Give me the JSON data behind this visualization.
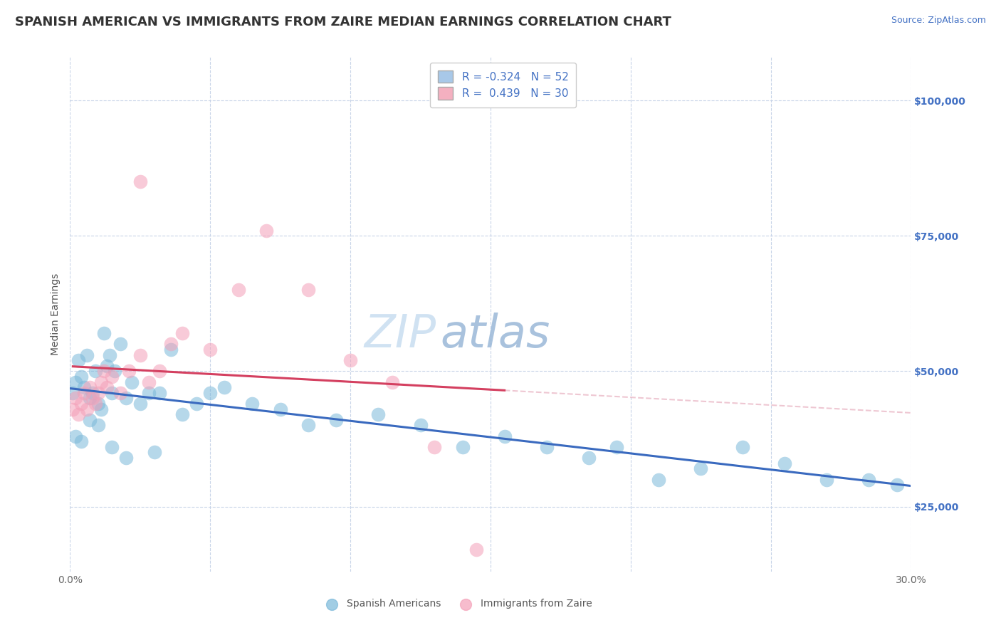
{
  "title": "SPANISH AMERICAN VS IMMIGRANTS FROM ZAIRE MEDIAN EARNINGS CORRELATION CHART",
  "source": "Source: ZipAtlas.com",
  "ylabel": "Median Earnings",
  "xlim": [
    0.0,
    0.3
  ],
  "ylim": [
    13000,
    108000
  ],
  "xticks": [
    0.0,
    0.05,
    0.1,
    0.15,
    0.2,
    0.25,
    0.3
  ],
  "xticklabels": [
    "0.0%",
    "",
    "",
    "",
    "",
    "",
    "30.0%"
  ],
  "ytick_positions": [
    25000,
    50000,
    75000,
    100000
  ],
  "ytick_labels": [
    "$25,000",
    "$50,000",
    "$75,000",
    "$100,000"
  ],
  "watermark_part1": "ZIP",
  "watermark_part2": "atlas",
  "series1_color": "#7ab8d9",
  "series2_color": "#f4a0b8",
  "series1_edge": "#5a98c0",
  "series2_edge": "#e07090",
  "trendline1_color": "#3a6abf",
  "trendline2_color": "#d44060",
  "trendline_dash_color": "#e8b0c0",
  "background_color": "#ffffff",
  "grid_color": "#c8d4e8",
  "legend_patch1_color": "#a8c8e8",
  "legend_patch2_color": "#f4b0c0",
  "legend_label1": "R = -0.324   N = 52",
  "legend_label2": "R =  0.439   N = 30",
  "bottom_label1": "Spanish Americans",
  "bottom_label2": "Immigrants from Zaire",
  "title_fontsize": 13,
  "axis_label_fontsize": 10,
  "tick_fontsize": 10,
  "legend_fontsize": 11,
  "source_fontsize": 9,
  "marker_size": 200,
  "spanish_x": [
    0.001,
    0.002,
    0.003,
    0.004,
    0.005,
    0.006,
    0.007,
    0.008,
    0.009,
    0.01,
    0.011,
    0.012,
    0.013,
    0.014,
    0.015,
    0.016,
    0.018,
    0.02,
    0.022,
    0.025,
    0.028,
    0.032,
    0.036,
    0.04,
    0.045,
    0.05,
    0.055,
    0.065,
    0.075,
    0.085,
    0.095,
    0.11,
    0.125,
    0.14,
    0.155,
    0.17,
    0.185,
    0.195,
    0.21,
    0.225,
    0.24,
    0.255,
    0.27,
    0.285,
    0.295,
    0.002,
    0.004,
    0.007,
    0.01,
    0.015,
    0.02,
    0.03
  ],
  "spanish_y": [
    46000,
    48000,
    52000,
    49000,
    47000,
    53000,
    45000,
    46000,
    50000,
    44000,
    43000,
    57000,
    51000,
    53000,
    46000,
    50000,
    55000,
    45000,
    48000,
    44000,
    46000,
    46000,
    54000,
    42000,
    44000,
    46000,
    47000,
    44000,
    43000,
    40000,
    41000,
    42000,
    40000,
    36000,
    38000,
    36000,
    34000,
    36000,
    30000,
    32000,
    36000,
    33000,
    30000,
    30000,
    29000,
    38000,
    37000,
    41000,
    40000,
    36000,
    34000,
    35000
  ],
  "zaire_x": [
    0.001,
    0.002,
    0.003,
    0.004,
    0.005,
    0.006,
    0.007,
    0.008,
    0.009,
    0.01,
    0.011,
    0.012,
    0.013,
    0.015,
    0.018,
    0.021,
    0.025,
    0.028,
    0.032,
    0.036,
    0.04,
    0.05,
    0.06,
    0.07,
    0.085,
    0.1,
    0.115,
    0.13,
    0.145,
    0.025
  ],
  "zaire_y": [
    43000,
    45000,
    42000,
    44000,
    46000,
    43000,
    47000,
    45000,
    44000,
    46000,
    48000,
    50000,
    47000,
    49000,
    46000,
    50000,
    53000,
    48000,
    50000,
    55000,
    57000,
    54000,
    65000,
    76000,
    65000,
    52000,
    48000,
    36000,
    17000,
    85000
  ],
  "trendline1_x_start": 0.0,
  "trendline1_x_end": 0.3,
  "trendline2_x_start": 0.001,
  "trendline2_x_end": 0.155,
  "trendline2_dash_x_start": 0.001,
  "trendline2_dash_x_end": 0.3
}
